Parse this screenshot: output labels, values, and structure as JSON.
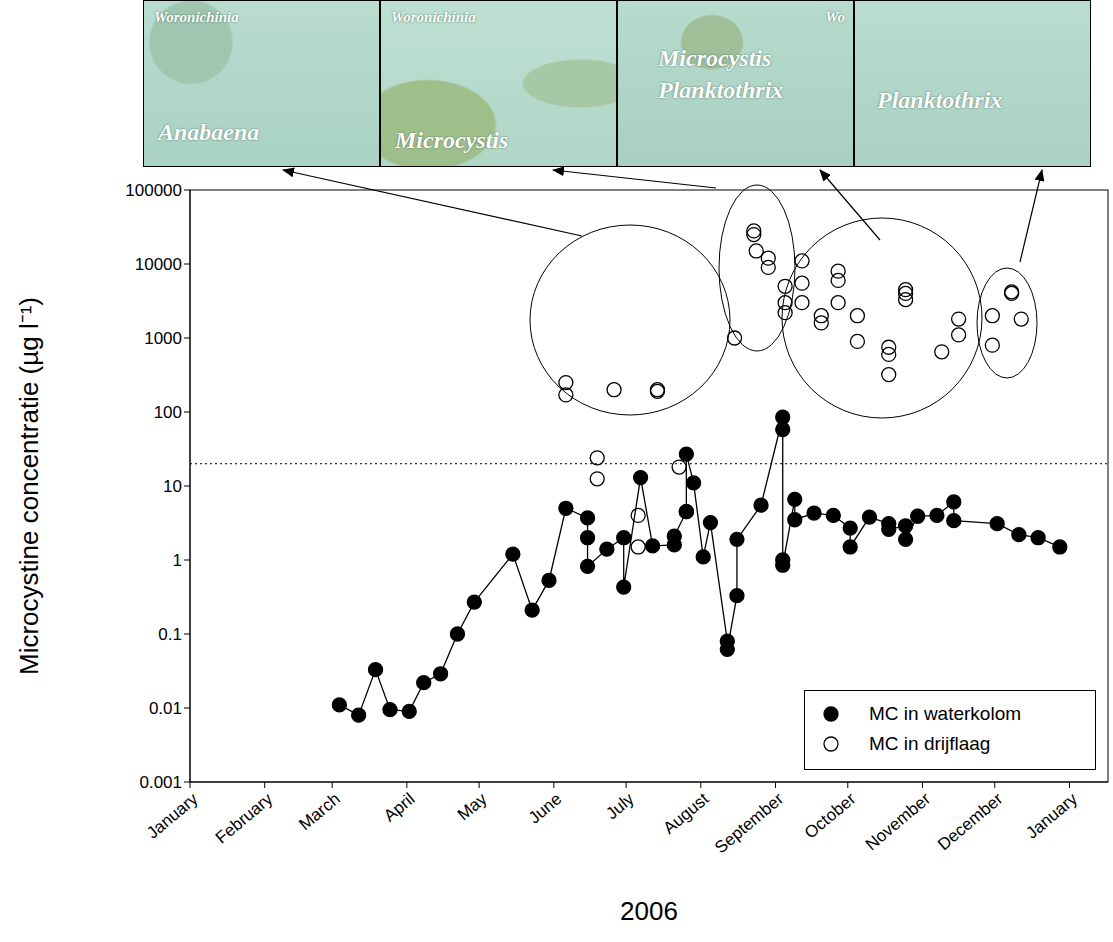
{
  "chart_data": {
    "type": "scatter",
    "xlabel": "2006",
    "ylabel": "Microcystine concentratie (µg l⁻¹)",
    "log": "y",
    "legend": "lower right",
    "xlim": [
      0,
      381
    ],
    "xticks": [
      {
        "value": 0,
        "label": "January"
      },
      {
        "value": 31,
        "label": "February"
      },
      {
        "value": 59,
        "label": "March"
      },
      {
        "value": 90,
        "label": "April"
      },
      {
        "value": 120,
        "label": "May"
      },
      {
        "value": 151,
        "label": "June"
      },
      {
        "value": 181,
        "label": "July"
      },
      {
        "value": 212,
        "label": "August"
      },
      {
        "value": 243,
        "label": "September"
      },
      {
        "value": 273,
        "label": "October"
      },
      {
        "value": 304,
        "label": "November"
      },
      {
        "value": 334,
        "label": "December"
      },
      {
        "value": 365,
        "label": "January"
      }
    ],
    "ylim": [
      0.001,
      100000
    ],
    "yticks": [
      0.001,
      0.01,
      0.1,
      1,
      10,
      100,
      1000,
      10000,
      100000
    ],
    "reference_y": 20,
    "series": [
      {
        "name": "MC in waterkolom",
        "color": "#000000",
        "marker": "filled_circle",
        "line_style": "solid",
        "x": [
          62,
          70,
          77,
          83,
          91,
          97,
          104,
          111,
          118,
          134,
          142,
          149,
          156,
          165,
          165,
          165,
          173,
          180,
          180,
          187,
          192,
          201,
          201,
          206,
          206,
          209,
          213,
          216,
          223,
          223,
          227,
          227,
          237,
          246,
          246,
          246,
          246,
          251,
          251,
          259,
          267,
          274,
          274,
          282,
          290,
          290,
          297,
          297,
          302,
          310,
          317,
          317,
          335,
          344,
          352,
          361
        ],
        "values": [
          0.011,
          0.008,
          0.033,
          0.0095,
          0.009,
          0.022,
          0.029,
          0.1,
          0.27,
          1.2,
          0.21,
          0.53,
          5.0,
          3.7,
          2.0,
          0.82,
          1.4,
          2.0,
          0.43,
          13,
          1.55,
          1.6,
          2.1,
          4.5,
          27,
          11,
          1.1,
          3.2,
          0.08,
          0.062,
          0.33,
          1.9,
          5.5,
          85,
          58,
          1.0,
          0.85,
          6.6,
          3.5,
          4.3,
          4.0,
          2.7,
          1.5,
          3.8,
          3.1,
          2.6,
          2.9,
          1.9,
          3.9,
          4.0,
          6.1,
          3.4,
          3.1,
          2.2,
          2.0,
          1.5
        ]
      },
      {
        "name": "MC in drijflaag",
        "color": "#000000",
        "marker": "open_circle",
        "line_style": "none",
        "x": [
          156,
          156,
          169,
          169,
          176,
          186,
          186,
          194,
          194,
          203,
          206,
          226,
          234,
          234,
          235,
          240,
          240,
          247,
          247,
          247,
          254,
          254,
          254,
          262,
          262,
          269,
          269,
          269,
          277,
          277,
          290,
          290,
          290,
          297,
          297,
          297,
          312,
          319,
          319,
          333,
          333,
          341,
          341,
          345
        ],
        "values": [
          250,
          170,
          24,
          12.5,
          200,
          4,
          1.5,
          200,
          190,
          18,
          4.5,
          1000,
          28000,
          25000,
          15000,
          12000,
          9000,
          5000,
          3000,
          2200,
          11000,
          5500,
          3000,
          2000,
          1600,
          8000,
          6000,
          3000,
          2000,
          900,
          750,
          600,
          320,
          4500,
          4000,
          3300,
          650,
          1800,
          1100,
          2000,
          800,
          4200,
          4000,
          1800
        ]
      }
    ],
    "panels": [
      {
        "labels": [
          "Woronichinia",
          "Anabaena"
        ]
      },
      {
        "labels": [
          "Woronichinia",
          "Microcystis"
        ]
      },
      {
        "labels": [
          "Wo",
          "Microcystis",
          "Planktothrix"
        ]
      },
      {
        "labels": [
          "Planktothrix"
        ]
      }
    ]
  }
}
